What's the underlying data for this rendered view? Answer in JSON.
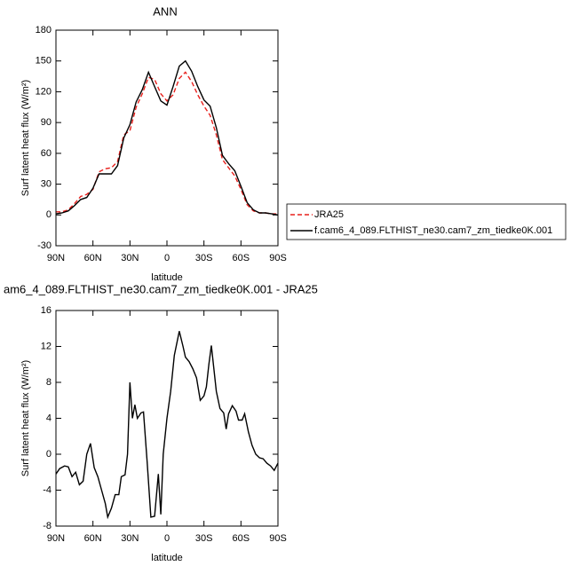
{
  "chart_data": [
    {
      "type": "line",
      "title": "ANN",
      "xlabel": "latitude",
      "ylabel": "Surf latent heat flux (W/m²)",
      "x": [
        90,
        85,
        80,
        75,
        70,
        65,
        60,
        55,
        50,
        45,
        40,
        35,
        30,
        25,
        20,
        15,
        10,
        5,
        0,
        -5,
        -10,
        -15,
        -20,
        -25,
        -30,
        -35,
        -40,
        -45,
        -50,
        -55,
        -60,
        -65,
        -70,
        -75,
        -80,
        -85,
        -90
      ],
      "series": [
        {
          "name": "JRA25",
          "color": "#e8201c",
          "dashed": true,
          "values": [
            3,
            3,
            5,
            11,
            18,
            20,
            25,
            42,
            45,
            46,
            52,
            78,
            82,
            105,
            118,
            134,
            132,
            118,
            111,
            117,
            133,
            139,
            130,
            117,
            106,
            97,
            78,
            54,
            46,
            38,
            25,
            10,
            4,
            2,
            2,
            1,
            1
          ]
        },
        {
          "name": "f.cam6_4_089.FLTHIST_ne30.cam7_zm_tiedke0K.001",
          "color": "#000000",
          "dashed": false,
          "values": [
            1,
            2,
            4,
            9,
            15,
            17,
            26,
            40,
            40,
            40,
            48,
            75,
            88,
            110,
            122,
            139,
            125,
            111,
            107,
            125,
            145,
            150,
            140,
            125,
            112,
            106,
            85,
            58,
            50,
            43,
            28,
            12,
            5,
            2,
            2,
            1,
            0
          ]
        }
      ],
      "xlim": [
        90,
        -90
      ],
      "xticks": [
        {
          "value": 90,
          "label": "90N"
        },
        {
          "value": 60,
          "label": "60N"
        },
        {
          "value": 30,
          "label": "30N"
        },
        0,
        {
          "value": -30,
          "label": "30S"
        },
        {
          "value": -60,
          "label": "60S"
        },
        {
          "value": -90,
          "label": "90S"
        }
      ],
      "ylim": [
        -30,
        180
      ],
      "yticks": [
        -30,
        0,
        30,
        60,
        90,
        120,
        150,
        180
      ]
    },
    {
      "type": "line",
      "title": "am6_4_089.FLTHIST_ne30.cam7_zm_tiedke0K.001 - JRA25",
      "xlabel": "latitude",
      "ylabel": "Surf latent heat flux (W/m²)",
      "x": [
        90,
        87,
        83,
        80,
        77,
        74,
        71,
        68,
        65,
        62,
        59,
        56,
        53,
        50,
        48,
        45,
        42,
        39,
        37,
        34,
        32,
        30,
        28,
        26,
        24,
        21,
        19,
        16,
        13,
        10,
        7,
        5,
        3,
        0,
        -3,
        -6,
        -10,
        -13,
        -15,
        -18,
        -21,
        -24,
        -27,
        -30,
        -32,
        -34,
        -36,
        -40,
        -43,
        -46,
        -48,
        -50,
        -53,
        -56,
        -58,
        -61,
        -63,
        -66,
        -69,
        -72,
        -75,
        -78,
        -81,
        -84,
        -87,
        -90
      ],
      "series": [
        {
          "name": null,
          "color": "#000000",
          "dashed": false,
          "values": [
            -2.2,
            -1.6,
            -1.3,
            -1.4,
            -2.5,
            -2,
            -3.4,
            -3,
            0,
            1.2,
            -1.5,
            -2.5,
            -4,
            -5.5,
            -7,
            -6,
            -4.5,
            -4.5,
            -2.5,
            -2.3,
            0,
            8,
            4,
            5.5,
            4,
            4.6,
            4.7,
            -1,
            -7,
            -6.9,
            -2.2,
            -6.7,
            0,
            4,
            7,
            11,
            13.7,
            12,
            10.8,
            10.3,
            9.5,
            8.5,
            6,
            6.5,
            7.5,
            10,
            12.1,
            7,
            5.1,
            4.6,
            2.8,
            4.5,
            5.4,
            4.8,
            3.8,
            3.8,
            4.5,
            2.5,
            1,
            0,
            -0.4,
            -0.5,
            -1,
            -1.3,
            -1.8,
            -1
          ]
        }
      ],
      "xlim": [
        90,
        -90
      ],
      "xticks": [
        {
          "value": 90,
          "label": "90N"
        },
        {
          "value": 60,
          "label": "60N"
        },
        {
          "value": 30,
          "label": "30N"
        },
        0,
        {
          "value": -30,
          "label": "30S"
        },
        {
          "value": -60,
          "label": "60S"
        },
        {
          "value": -90,
          "label": "90S"
        }
      ],
      "ylim": [
        -8,
        16
      ],
      "yticks": [
        -8,
        -4,
        0,
        4,
        8,
        12,
        16
      ]
    }
  ]
}
